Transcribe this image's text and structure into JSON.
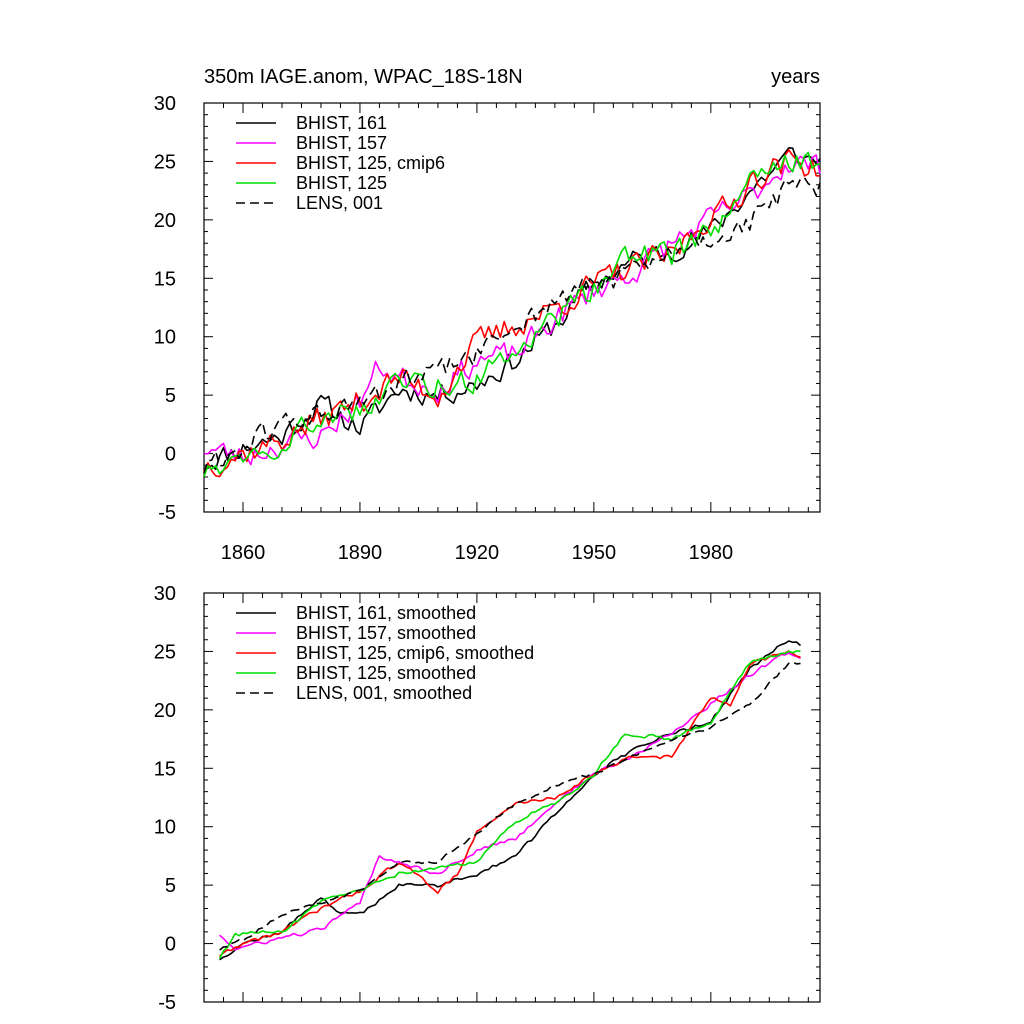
{
  "chart_data": [
    {
      "type": "line",
      "title_left": "350m IAGE.anom, WPAC_18S-18N",
      "title_right": "years",
      "xlabel": "",
      "ylabel": "",
      "xlim": [
        1850,
        2008
      ],
      "ylim": [
        -5,
        30
      ],
      "yticks": [
        -5,
        0,
        5,
        10,
        15,
        20,
        25,
        30
      ],
      "xticks": [
        1860,
        1890,
        1920,
        1950,
        1980
      ],
      "xtick_labels": [
        "1860",
        "1890",
        "1920",
        "1950",
        "1980"
      ],
      "legend_position": "top-left",
      "series": [
        {
          "name": "BHIST, 161",
          "color": "#000000",
          "dash": false,
          "seed": 11,
          "noise": 1.4,
          "base": [
            [
              1850,
              -0.8
            ],
            [
              1860,
              0.5
            ],
            [
              1870,
              1.5
            ],
            [
              1880,
              4.2
            ],
            [
              1885,
              3.2
            ],
            [
              1890,
              2.2
            ],
            [
              1900,
              5.5
            ],
            [
              1910,
              5.0
            ],
            [
              1920,
              6.0
            ],
            [
              1930,
              8.0
            ],
            [
              1940,
              11.0
            ],
            [
              1950,
              14.5
            ],
            [
              1960,
              16.5
            ],
            [
              1970,
              17.5
            ],
            [
              1980,
              19.0
            ],
            [
              1990,
              22.5
            ],
            [
              2000,
              25.5
            ],
            [
              2008,
              25.0
            ]
          ]
        },
        {
          "name": "BHIST, 157",
          "color": "#ff00ff",
          "dash": false,
          "seed": 23,
          "noise": 1.5,
          "base": [
            [
              1850,
              0.5
            ],
            [
              1860,
              -0.3
            ],
            [
              1870,
              0.8
            ],
            [
              1880,
              1.5
            ],
            [
              1890,
              4.5
            ],
            [
              1895,
              7.5
            ],
            [
              1900,
              6.5
            ],
            [
              1910,
              5.5
            ],
            [
              1920,
              8.0
            ],
            [
              1930,
              8.5
            ],
            [
              1940,
              11.5
            ],
            [
              1950,
              14.0
            ],
            [
              1960,
              15.5
            ],
            [
              1970,
              18.0
            ],
            [
              1980,
              20.0
            ],
            [
              1990,
              22.0
            ],
            [
              2000,
              25.0
            ],
            [
              2008,
              24.5
            ]
          ]
        },
        {
          "name": "BHIST, 125, cmip6",
          "color": "#ff0000",
          "dash": false,
          "seed": 37,
          "noise": 1.6,
          "base": [
            [
              1850,
              -1.0
            ],
            [
              1860,
              0.0
            ],
            [
              1870,
              1.2
            ],
            [
              1880,
              3.0
            ],
            [
              1890,
              4.5
            ],
            [
              1900,
              6.5
            ],
            [
              1910,
              5.0
            ],
            [
              1920,
              9.5
            ],
            [
              1930,
              11.0
            ],
            [
              1940,
              12.5
            ],
            [
              1950,
              14.5
            ],
            [
              1960,
              16.0
            ],
            [
              1970,
              17.0
            ],
            [
              1980,
              20.5
            ],
            [
              1985,
              21.0
            ],
            [
              1990,
              23.5
            ],
            [
              2000,
              25.0
            ],
            [
              2008,
              24.5
            ]
          ]
        },
        {
          "name": "BHIST, 125",
          "color": "#00dd00",
          "dash": false,
          "seed": 49,
          "noise": 1.5,
          "base": [
            [
              1850,
              -1.5
            ],
            [
              1860,
              0.3
            ],
            [
              1870,
              1.0
            ],
            [
              1880,
              3.2
            ],
            [
              1890,
              4.0
            ],
            [
              1900,
              6.0
            ],
            [
              1910,
              6.0
            ],
            [
              1920,
              6.5
            ],
            [
              1930,
              9.0
            ],
            [
              1940,
              11.5
            ],
            [
              1950,
              14.0
            ],
            [
              1960,
              17.0
            ],
            [
              1970,
              17.0
            ],
            [
              1980,
              19.0
            ],
            [
              1990,
              23.0
            ],
            [
              2000,
              25.0
            ],
            [
              2008,
              24.5
            ]
          ]
        },
        {
          "name": "LENS, 001",
          "color": "#000000",
          "dash": true,
          "seed": 61,
          "noise": 1.4,
          "base": [
            [
              1850,
              -1.2
            ],
            [
              1860,
              0.5
            ],
            [
              1870,
              2.5
            ],
            [
              1880,
              3.5
            ],
            [
              1890,
              4.0
            ],
            [
              1900,
              6.0
            ],
            [
              1910,
              7.0
            ],
            [
              1920,
              8.5
            ],
            [
              1930,
              11.0
            ],
            [
              1940,
              13.0
            ],
            [
              1950,
              14.5
            ],
            [
              1960,
              15.5
            ],
            [
              1970,
              17.0
            ],
            [
              1980,
              18.5
            ],
            [
              1990,
              19.5
            ],
            [
              2000,
              23.0
            ],
            [
              2008,
              22.5
            ]
          ]
        }
      ]
    },
    {
      "type": "line",
      "title_left": "",
      "title_right": "",
      "xlim": [
        1850,
        2008
      ],
      "ylim": [
        -5,
        30
      ],
      "yticks": [
        -5,
        0,
        5,
        10,
        15,
        20,
        25,
        30
      ],
      "xticks": [
        1860,
        1890,
        1920,
        1950,
        1980
      ],
      "legend_position": "top-left",
      "series": [
        {
          "name": "BHIST, 161, smoothed",
          "color": "#000000",
          "dash": false,
          "seed": 12,
          "noise": 0.25,
          "base": [
            [
              1854,
              -1.3
            ],
            [
              1860,
              0.0
            ],
            [
              1870,
              1.0
            ],
            [
              1880,
              4.0
            ],
            [
              1885,
              2.5
            ],
            [
              1890,
              2.5
            ],
            [
              1900,
              5.0
            ],
            [
              1910,
              5.0
            ],
            [
              1920,
              6.0
            ],
            [
              1930,
              7.5
            ],
            [
              1940,
              11.0
            ],
            [
              1950,
              14.5
            ],
            [
              1960,
              16.5
            ],
            [
              1970,
              18.0
            ],
            [
              1980,
              19.0
            ],
            [
              1990,
              23.5
            ],
            [
              2000,
              26.0
            ],
            [
              2003,
              25.5
            ]
          ]
        },
        {
          "name": "BHIST, 157, smoothed",
          "color": "#ff00ff",
          "dash": false,
          "seed": 24,
          "noise": 0.25,
          "base": [
            [
              1854,
              0.8
            ],
            [
              1858,
              -0.5
            ],
            [
              1870,
              0.5
            ],
            [
              1880,
              1.2
            ],
            [
              1890,
              3.5
            ],
            [
              1895,
              7.5
            ],
            [
              1900,
              7.0
            ],
            [
              1910,
              6.0
            ],
            [
              1920,
              8.0
            ],
            [
              1930,
              9.0
            ],
            [
              1940,
              12.0
            ],
            [
              1950,
              14.5
            ],
            [
              1960,
              16.0
            ],
            [
              1970,
              18.0
            ],
            [
              1980,
              20.5
            ],
            [
              1990,
              23.0
            ],
            [
              2000,
              25.0
            ],
            [
              2003,
              24.5
            ]
          ]
        },
        {
          "name": "BHIST, 125, cmip6, smoothed",
          "color": "#ff0000",
          "dash": false,
          "seed": 38,
          "noise": 0.25,
          "base": [
            [
              1854,
              -1.0
            ],
            [
              1860,
              0.0
            ],
            [
              1870,
              1.0
            ],
            [
              1880,
              3.0
            ],
            [
              1890,
              4.5
            ],
            [
              1900,
              7.0
            ],
            [
              1910,
              4.5
            ],
            [
              1915,
              6.0
            ],
            [
              1920,
              9.5
            ],
            [
              1930,
              12.0
            ],
            [
              1940,
              12.5
            ],
            [
              1950,
              14.5
            ],
            [
              1960,
              16.0
            ],
            [
              1970,
              16.0
            ],
            [
              1980,
              21.0
            ],
            [
              1985,
              20.5
            ],
            [
              1990,
              24.0
            ],
            [
              2000,
              25.0
            ],
            [
              2003,
              24.5
            ]
          ]
        },
        {
          "name": "BHIST, 125, smoothed",
          "color": "#00dd00",
          "dash": false,
          "seed": 50,
          "noise": 0.25,
          "base": [
            [
              1854,
              -1.2
            ],
            [
              1858,
              0.8
            ],
            [
              1870,
              1.0
            ],
            [
              1880,
              3.5
            ],
            [
              1890,
              4.5
            ],
            [
              1900,
              6.0
            ],
            [
              1910,
              6.5
            ],
            [
              1920,
              7.0
            ],
            [
              1930,
              10.5
            ],
            [
              1940,
              12.0
            ],
            [
              1950,
              14.5
            ],
            [
              1958,
              18.0
            ],
            [
              1970,
              17.5
            ],
            [
              1980,
              19.0
            ],
            [
              1990,
              24.0
            ],
            [
              2000,
              25.0
            ],
            [
              2003,
              25.0
            ]
          ]
        },
        {
          "name": "LENS, 001, smoothed",
          "color": "#000000",
          "dash": true,
          "seed": 62,
          "noise": 0.2,
          "base": [
            [
              1854,
              -0.5
            ],
            [
              1860,
              0.3
            ],
            [
              1870,
              2.5
            ],
            [
              1880,
              3.5
            ],
            [
              1890,
              4.5
            ],
            [
              1900,
              7.0
            ],
            [
              1910,
              7.0
            ],
            [
              1920,
              9.5
            ],
            [
              1930,
              12.0
            ],
            [
              1940,
              13.5
            ],
            [
              1950,
              14.5
            ],
            [
              1960,
              16.0
            ],
            [
              1970,
              17.5
            ],
            [
              1980,
              18.5
            ],
            [
              1990,
              20.5
            ],
            [
              2000,
              24.0
            ],
            [
              2003,
              24.0
            ]
          ]
        }
      ]
    }
  ]
}
